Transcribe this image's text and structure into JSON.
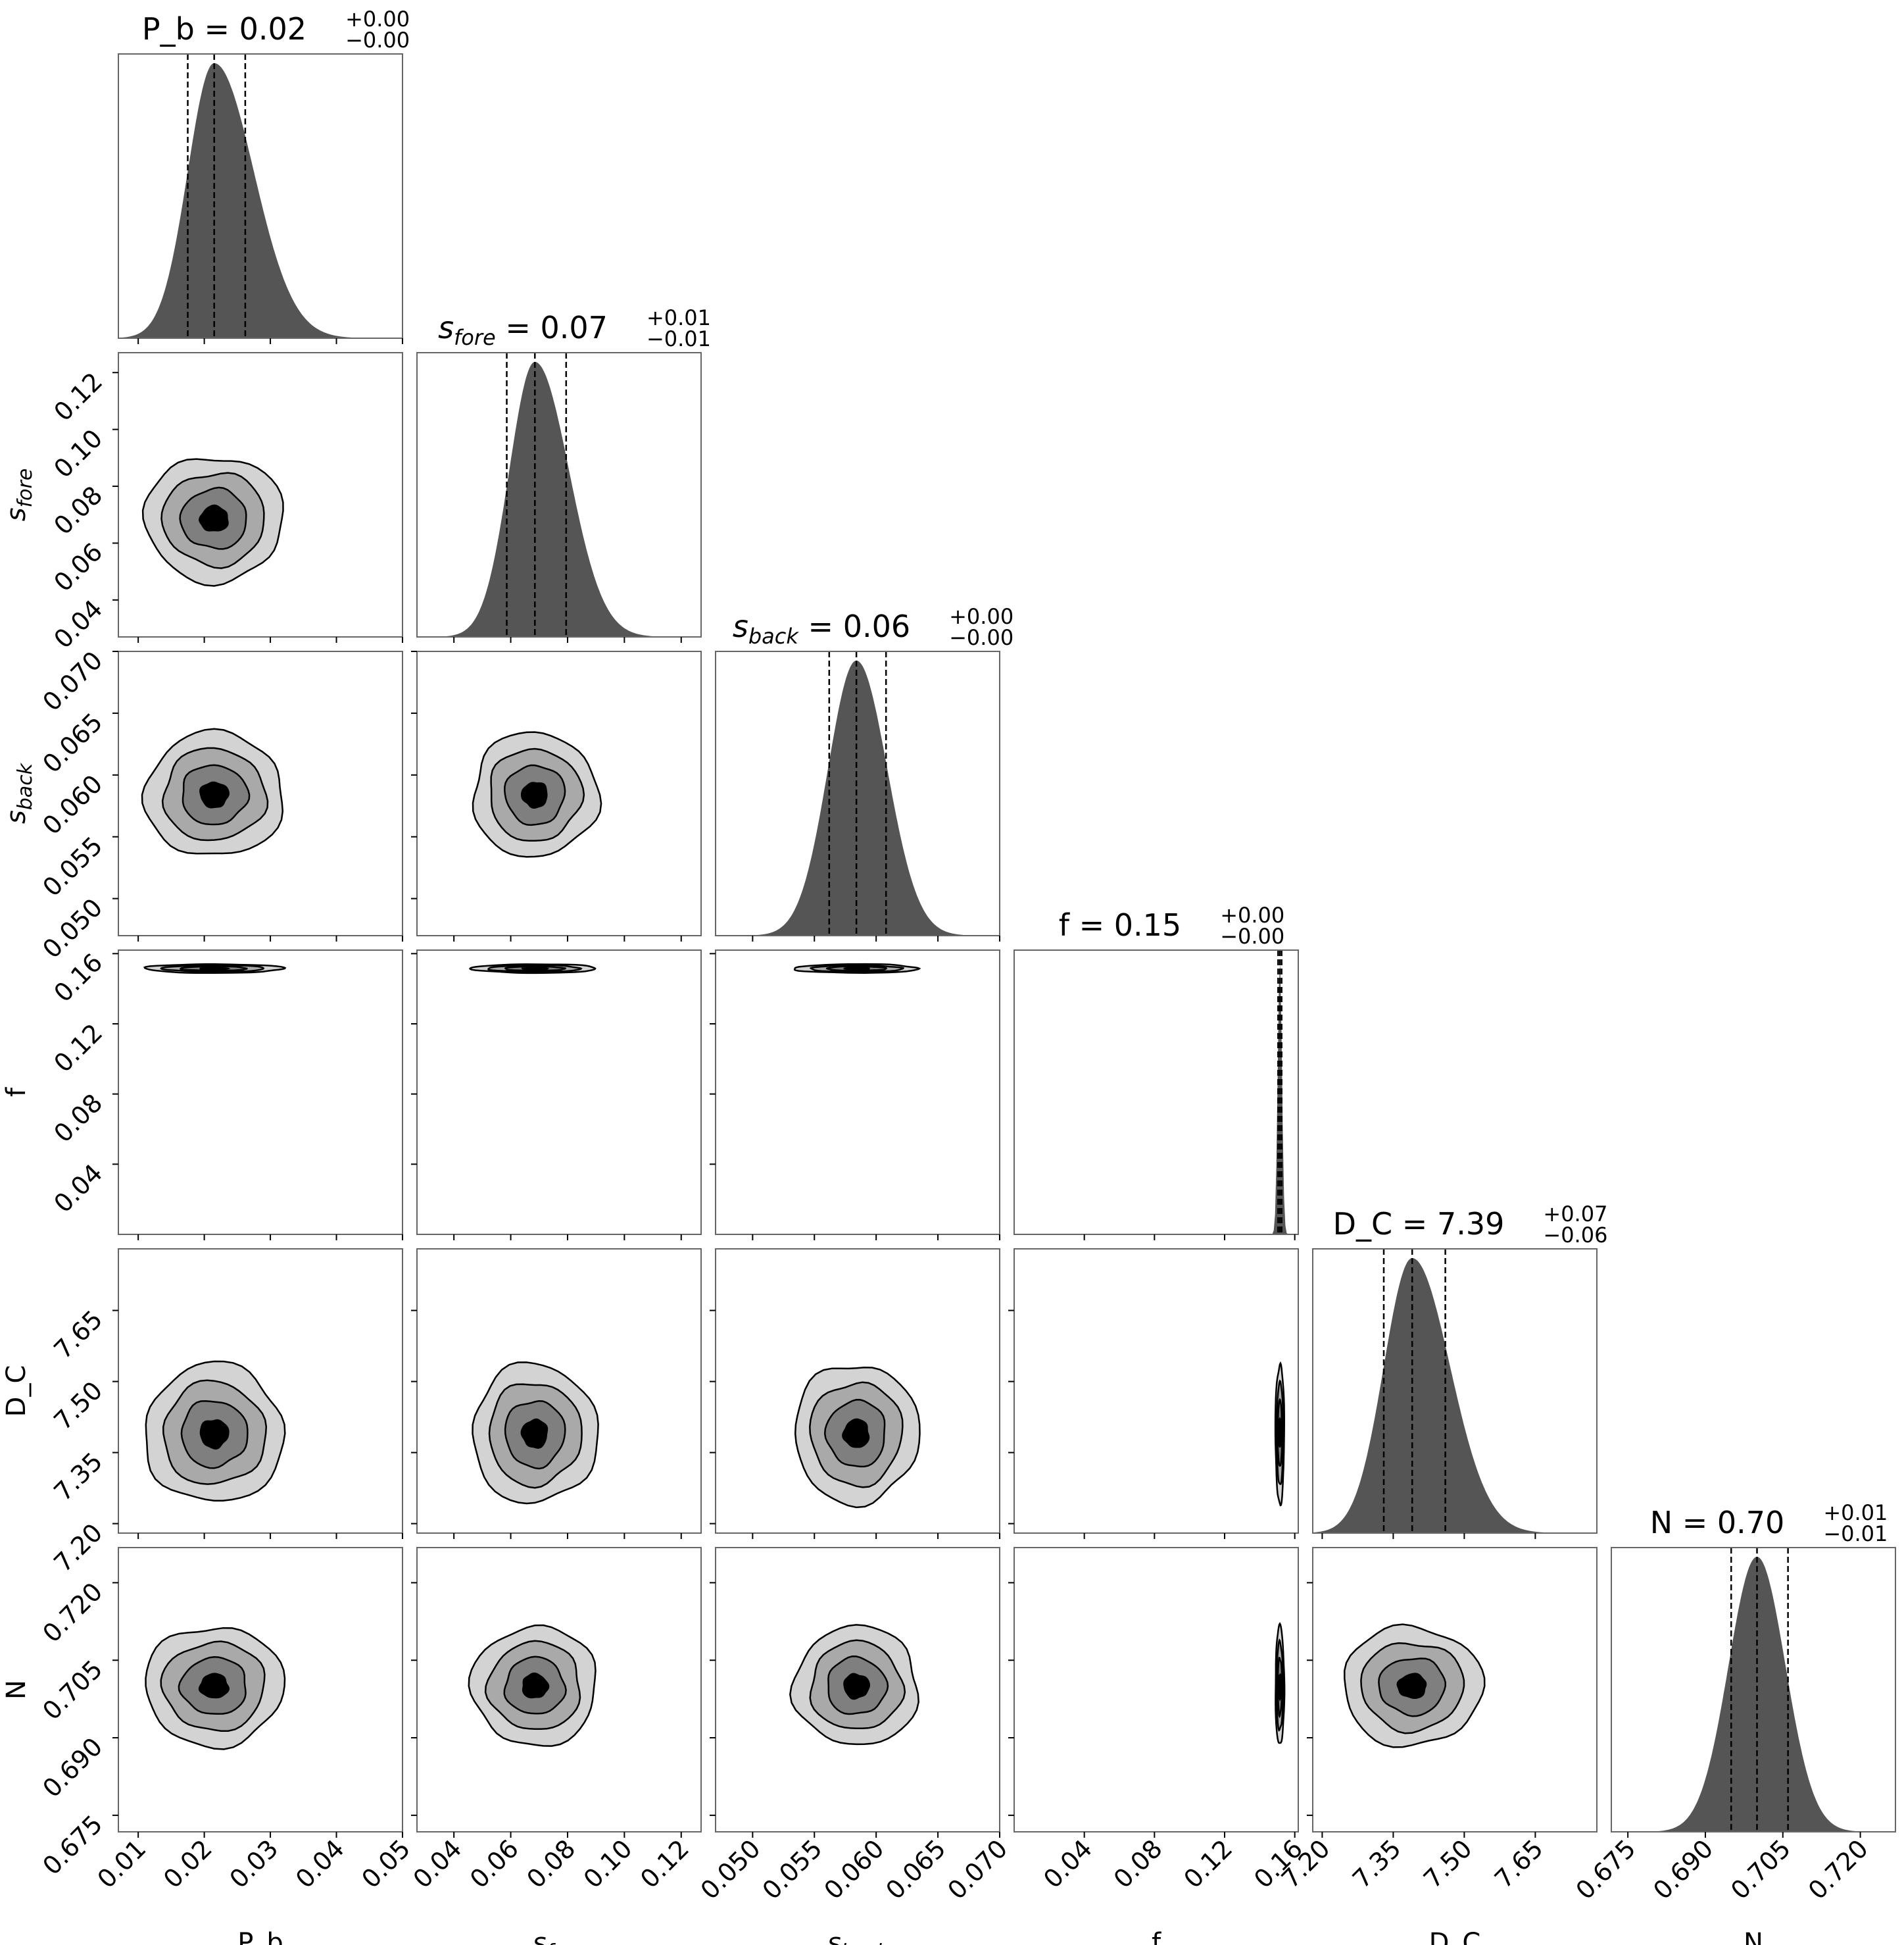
{
  "chart_data": {
    "type": "corner",
    "colors": {
      "hist_fill": "#555555",
      "contour_levels": [
        "#d3d3d3",
        "#a9a9a9",
        "#7f7f7f",
        "#000000"
      ],
      "contour_line": "#000000",
      "quantile_line": "#000000",
      "frame": "#666666"
    },
    "parameters": [
      {
        "key": "P_b",
        "label": "P_b",
        "label_base": "",
        "label_sub": "",
        "title_prefix": "P_b = ",
        "title_value": "0.02",
        "title_plus": "+0.00",
        "title_minus": "−0.00",
        "range": [
          0.007,
          0.05
        ],
        "ticks": [
          "0.01",
          "0.02",
          "0.03",
          "0.04",
          "0.05"
        ],
        "median": 0.0215,
        "q16": 0.0175,
        "q84": 0.0262,
        "sigma": 0.004,
        "skew": 0.006
      },
      {
        "key": "s_fore",
        "label": "",
        "label_base": "s",
        "label_sub": "fore",
        "title_prefix": " = ",
        "title_value": "0.07",
        "title_plus": "+0.01",
        "title_minus": "−0.01",
        "range": [
          0.027,
          0.127
        ],
        "ticks": [
          "0.04",
          "0.06",
          "0.08",
          "0.10",
          "0.12"
        ],
        "median": 0.0685,
        "q16": 0.0586,
        "q84": 0.0795,
        "sigma": 0.009,
        "skew": 0.012
      },
      {
        "key": "s_back",
        "label": "",
        "label_base": "s",
        "label_sub": "back",
        "title_prefix": " = ",
        "title_value": "0.06",
        "title_plus": "+0.00",
        "title_minus": "−0.00",
        "range": [
          0.047,
          0.07
        ],
        "ticks": [
          "0.050",
          "0.055",
          "0.060",
          "0.065",
          "0.070"
        ],
        "median": 0.0584,
        "q16": 0.0562,
        "q84": 0.0608,
        "sigma": 0.0023,
        "skew": 0.0025
      },
      {
        "key": "f",
        "label": "f",
        "label_base": "",
        "label_sub": "",
        "title_prefix": "f = ",
        "title_value": "0.15",
        "title_plus": "+0.00",
        "title_minus": "−0.00",
        "range": [
          0.0,
          0.162
        ],
        "ticks": [
          "0.04",
          "0.08",
          "0.12",
          "0.16"
        ],
        "median": 0.1515,
        "q16": 0.1505,
        "q84": 0.1525,
        "sigma": 0.0012,
        "skew": 0.0012
      },
      {
        "key": "D_C",
        "label": "D_C",
        "label_base": "",
        "label_sub": "",
        "title_prefix": "D_C = ",
        "title_value": "7.39",
        "title_plus": "+0.07",
        "title_minus": "−0.06",
        "range": [
          7.18,
          7.78
        ],
        "ticks": [
          "7.20",
          "7.35",
          "7.50",
          "7.65"
        ],
        "median": 7.39,
        "q16": 7.33,
        "q84": 7.46,
        "sigma": 0.06,
        "skew": 0.08
      },
      {
        "key": "N",
        "label": "N",
        "label_base": "",
        "label_sub": "",
        "title_prefix": "N = ",
        "title_value": "0.70",
        "title_plus": "+0.01",
        "title_minus": "−0.01",
        "range": [
          0.6718,
          0.7268
        ],
        "ticks": [
          "0.675",
          "0.690",
          "0.705",
          "0.720"
        ],
        "median": 0.7,
        "q16": 0.695,
        "q84": 0.706,
        "sigma": 0.0055,
        "skew": 0.0055
      }
    ]
  }
}
